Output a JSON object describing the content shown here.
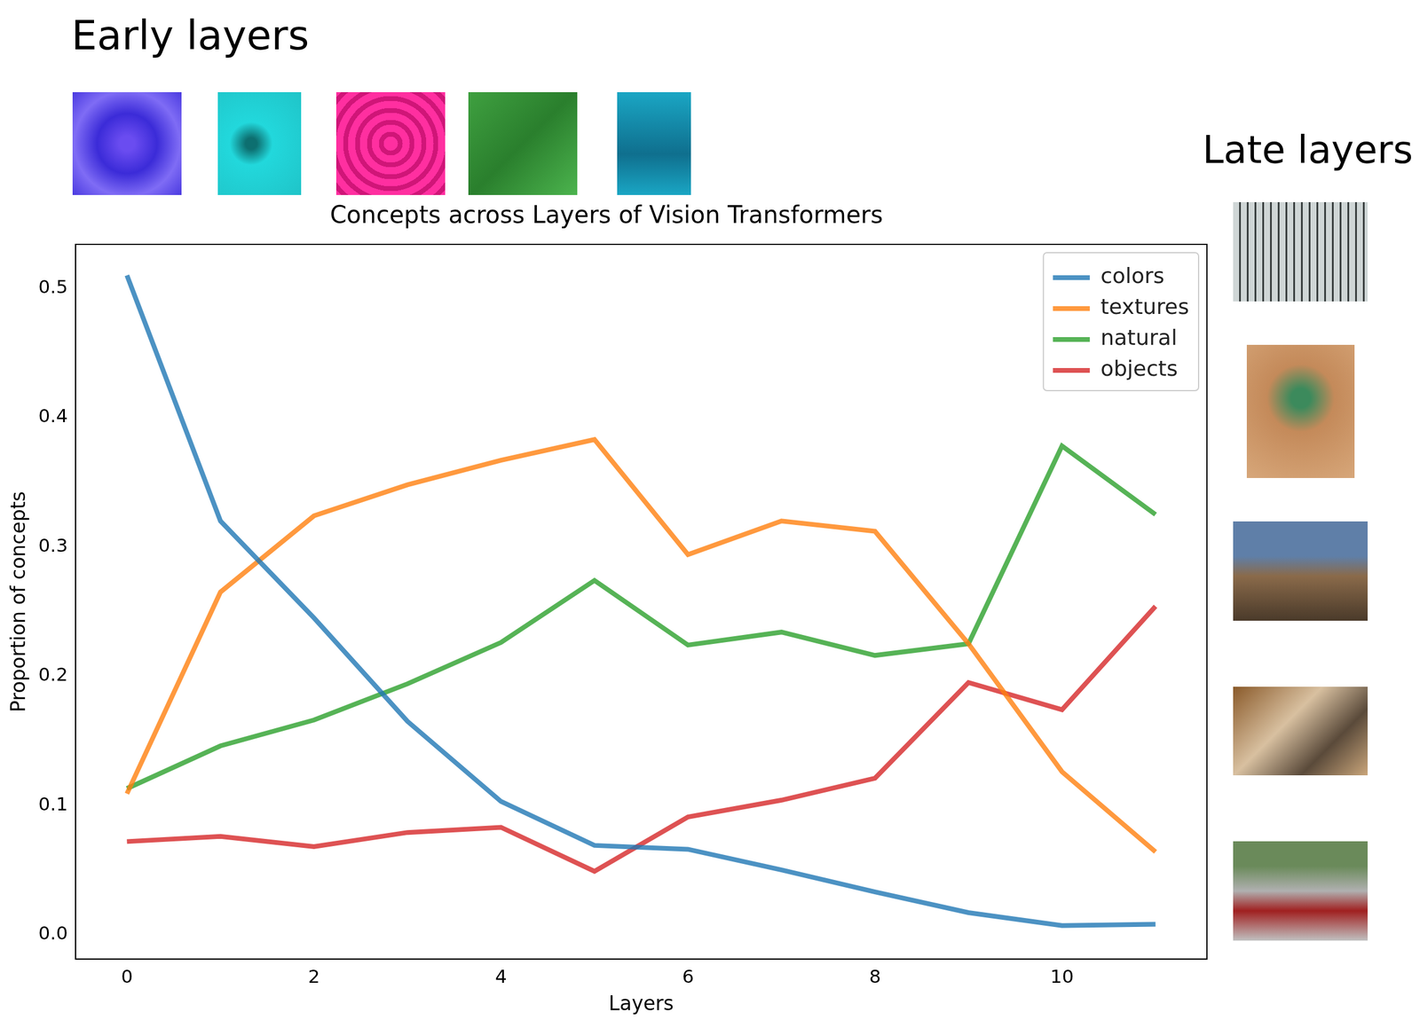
{
  "header": {
    "early_layers": "Early layers",
    "late_layers": "Late layers"
  },
  "chart_data": {
    "type": "line",
    "title": "Concepts across Layers of Vision Transformers",
    "x_label": "Layers",
    "y_label": "Proportion of concepts",
    "x": [
      0,
      1,
      2,
      3,
      4,
      5,
      6,
      7,
      8,
      9,
      10,
      11
    ],
    "series": [
      {
        "name": "colors",
        "color": "#1f77b4",
        "values": [
          0.51,
          0.32,
          0.245,
          0.165,
          0.103,
          0.069,
          0.066,
          0.05,
          0.033,
          0.017,
          0.007,
          0.008
        ]
      },
      {
        "name": "textures",
        "color": "#ff7f0e",
        "values": [
          0.109,
          0.265,
          0.324,
          0.348,
          0.367,
          0.383,
          0.294,
          0.32,
          0.312,
          0.225,
          0.126,
          0.064
        ]
      },
      {
        "name": "natural",
        "color": "#2ca02c",
        "values": [
          0.113,
          0.146,
          0.166,
          0.194,
          0.226,
          0.274,
          0.224,
          0.234,
          0.216,
          0.225,
          0.378,
          0.325
        ]
      },
      {
        "name": "objects",
        "color": "#d62728",
        "values": [
          0.072,
          0.076,
          0.068,
          0.079,
          0.083,
          0.049,
          0.091,
          0.104,
          0.121,
          0.195,
          0.174,
          0.254
        ]
      }
    ],
    "xlim": [
      -0.55,
      11.55
    ],
    "ylim": [
      -0.019,
      0.534
    ],
    "xticks": [
      0,
      2,
      4,
      6,
      8,
      10
    ],
    "yticks": [
      {
        "value": 0,
        "label": "0.0"
      },
      0.1,
      0.2,
      0.3,
      0.4,
      0.5
    ],
    "grid": false,
    "legend": "upper right"
  }
}
